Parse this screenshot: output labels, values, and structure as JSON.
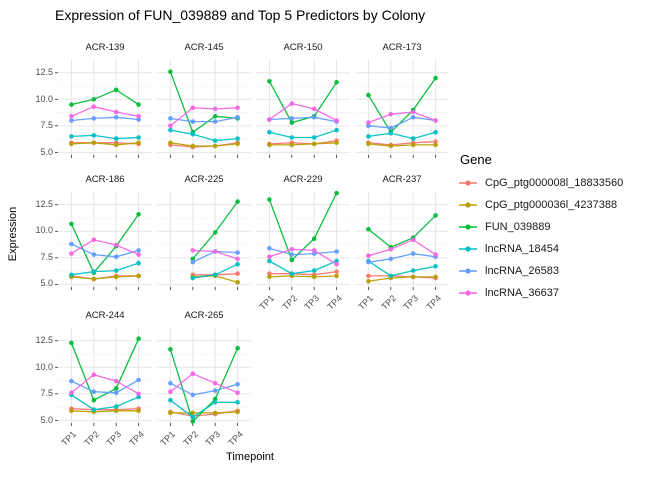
{
  "title": "Expression of FUN_039889 and Top 5 Predictors by Colony",
  "axes": {
    "x_title": "Timepoint",
    "y_title": "Expression",
    "x_tick_labels": [
      "TP1",
      "TP2",
      "TP3",
      "TP4"
    ],
    "y_tick_labels": [
      "5.0",
      "7.5",
      "10.0",
      "12.5"
    ]
  },
  "legend": {
    "title": "Gene",
    "entries": [
      {
        "label": "CpG_ptg000008l_18833560",
        "color": "#F8766D"
      },
      {
        "label": "CpG_ptg000036l_4237388",
        "color": "#B79F00"
      },
      {
        "label": "FUN_039889",
        "color": "#00BA38"
      },
      {
        "label": "lncRNA_18454",
        "color": "#00BFC4"
      },
      {
        "label": "lncRNA_26583",
        "color": "#619CFF"
      },
      {
        "label": "lncRNA_36637",
        "color": "#F564E3"
      }
    ]
  },
  "chart_data": {
    "type": "line",
    "title": "Expression of FUN_039889 and Top 5 Predictors by Colony",
    "xlabel": "Timepoint",
    "ylabel": "Expression",
    "x": [
      "TP1",
      "TP2",
      "TP3",
      "TP4"
    ],
    "y_ticks": [
      5.0,
      7.5,
      10.0,
      12.5
    ],
    "y_minor_ticks": [
      6.25,
      8.75,
      11.25
    ],
    "ylim": [
      4.75,
      13.8
    ],
    "grid": true,
    "legend_position": "right",
    "facet_variable": "Colony",
    "facets": [
      {
        "name": "ACR-139",
        "series": [
          {
            "name": "CpG_ptg000008l_18833560",
            "values": [
              5.9,
              5.9,
              5.9,
              5.8
            ]
          },
          {
            "name": "CpG_ptg000036l_4237388",
            "values": [
              5.8,
              5.9,
              5.7,
              5.9
            ]
          },
          {
            "name": "FUN_039889",
            "values": [
              9.5,
              10.0,
              10.9,
              9.5
            ]
          },
          {
            "name": "lncRNA_18454",
            "values": [
              6.5,
              6.6,
              6.3,
              6.4
            ]
          },
          {
            "name": "lncRNA_26583",
            "values": [
              8.0,
              8.2,
              8.3,
              8.1
            ]
          },
          {
            "name": "lncRNA_36637",
            "values": [
              8.4,
              9.3,
              8.8,
              8.4
            ]
          }
        ]
      },
      {
        "name": "ACR-145",
        "series": [
          {
            "name": "CpG_ptg000008l_18833560",
            "values": [
              5.7,
              5.5,
              5.6,
              5.9
            ]
          },
          {
            "name": "CpG_ptg000036l_4237388",
            "values": [
              5.9,
              5.6,
              5.6,
              5.8
            ]
          },
          {
            "name": "FUN_039889",
            "values": [
              12.6,
              6.9,
              8.4,
              8.2
            ]
          },
          {
            "name": "lncRNA_18454",
            "values": [
              7.1,
              6.7,
              6.1,
              6.3
            ]
          },
          {
            "name": "lncRNA_26583",
            "values": [
              8.2,
              7.9,
              7.9,
              8.3
            ]
          },
          {
            "name": "lncRNA_36637",
            "values": [
              7.5,
              9.2,
              9.1,
              9.2
            ]
          }
        ]
      },
      {
        "name": "ACR-150",
        "series": [
          {
            "name": "CpG_ptg000008l_18833560",
            "values": [
              5.8,
              5.9,
              5.8,
              6.1
            ]
          },
          {
            "name": "CpG_ptg000036l_4237388",
            "values": [
              5.7,
              5.7,
              5.8,
              5.9
            ]
          },
          {
            "name": "FUN_039889",
            "values": [
              11.7,
              7.8,
              8.4,
              11.6
            ]
          },
          {
            "name": "lncRNA_18454",
            "values": [
              6.9,
              6.4,
              6.4,
              7.1
            ]
          },
          {
            "name": "lncRNA_26583",
            "values": [
              8.1,
              8.2,
              8.3,
              7.9
            ]
          },
          {
            "name": "lncRNA_36637",
            "values": [
              8.1,
              9.6,
              9.1,
              8.0
            ]
          }
        ]
      },
      {
        "name": "ACR-173",
        "series": [
          {
            "name": "CpG_ptg000008l_18833560",
            "values": [
              5.9,
              5.7,
              5.9,
              6.0
            ]
          },
          {
            "name": "CpG_ptg000036l_4237388",
            "values": [
              5.8,
              5.6,
              5.7,
              5.7
            ]
          },
          {
            "name": "FUN_039889",
            "values": [
              10.4,
              6.9,
              9.0,
              12.0
            ]
          },
          {
            "name": "lncRNA_18454",
            "values": [
              6.5,
              6.8,
              6.3,
              6.9
            ]
          },
          {
            "name": "lncRNA_26583",
            "values": [
              7.5,
              7.3,
              8.3,
              8.0
            ]
          },
          {
            "name": "lncRNA_36637",
            "values": [
              7.8,
              8.6,
              8.8,
              8.0
            ]
          }
        ]
      },
      {
        "name": "ACR-186",
        "series": [
          {
            "name": "CpG_ptg000008l_18833560",
            "values": [
              5.8,
              5.5,
              5.8,
              5.8
            ]
          },
          {
            "name": "CpG_ptg000036l_4237388",
            "values": [
              5.7,
              5.5,
              5.7,
              5.8
            ]
          },
          {
            "name": "FUN_039889",
            "values": [
              10.7,
              6.1,
              8.6,
              11.6
            ]
          },
          {
            "name": "lncRNA_18454",
            "values": [
              5.9,
              6.2,
              6.3,
              7.0
            ]
          },
          {
            "name": "lncRNA_26583",
            "values": [
              8.8,
              7.8,
              7.6,
              8.2
            ]
          },
          {
            "name": "lncRNA_36637",
            "values": [
              7.9,
              9.2,
              8.7,
              7.8
            ]
          }
        ]
      },
      {
        "name": "ACR-225",
        "series": [
          {
            "name": "CpG_ptg000008l_18833560",
            "values": [
              null,
              5.9,
              5.9,
              6.0
            ]
          },
          {
            "name": "CpG_ptg000036l_4237388",
            "values": [
              null,
              5.7,
              5.8,
              5.2
            ]
          },
          {
            "name": "FUN_039889",
            "values": [
              null,
              7.4,
              9.9,
              12.8
            ]
          },
          {
            "name": "lncRNA_18454",
            "values": [
              null,
              5.6,
              5.9,
              6.9
            ]
          },
          {
            "name": "lncRNA_26583",
            "values": [
              null,
              7.1,
              8.1,
              8.0
            ]
          },
          {
            "name": "lncRNA_36637",
            "values": [
              null,
              8.2,
              8.1,
              7.4
            ]
          }
        ]
      },
      {
        "name": "ACR-229",
        "series": [
          {
            "name": "CpG_ptg000008l_18833560",
            "values": [
              6.0,
              6.0,
              5.9,
              6.2
            ]
          },
          {
            "name": "CpG_ptg000036l_4237388",
            "values": [
              5.7,
              5.8,
              5.7,
              5.8
            ]
          },
          {
            "name": "FUN_039889",
            "values": [
              13.0,
              7.3,
              9.3,
              13.6
            ]
          },
          {
            "name": "lncRNA_18454",
            "values": [
              7.2,
              6.0,
              6.3,
              7.2
            ]
          },
          {
            "name": "lncRNA_26583",
            "values": [
              8.4,
              7.8,
              7.9,
              8.1
            ]
          },
          {
            "name": "lncRNA_36637",
            "values": [
              7.6,
              8.3,
              8.2,
              6.9
            ]
          }
        ]
      },
      {
        "name": "ACR-237",
        "series": [
          {
            "name": "CpG_ptg000008l_18833560",
            "values": [
              5.8,
              5.8,
              5.7,
              5.6
            ]
          },
          {
            "name": "CpG_ptg000036l_4237388",
            "values": [
              5.3,
              5.6,
              5.7,
              5.7
            ]
          },
          {
            "name": "FUN_039889",
            "values": [
              10.2,
              8.5,
              9.4,
              11.5
            ]
          },
          {
            "name": "lncRNA_18454",
            "values": [
              7.2,
              5.8,
              6.3,
              6.7
            ]
          },
          {
            "name": "lncRNA_26583",
            "values": [
              7.1,
              7.4,
              7.9,
              7.6
            ]
          },
          {
            "name": "lncRNA_36637",
            "values": [
              7.7,
              8.3,
              9.2,
              7.8
            ]
          }
        ]
      },
      {
        "name": "ACR-244",
        "series": [
          {
            "name": "CpG_ptg000008l_18833560",
            "values": [
              6.1,
              6.0,
              6.0,
              6.1
            ]
          },
          {
            "name": "CpG_ptg000036l_4237388",
            "values": [
              5.9,
              5.8,
              5.9,
              5.9
            ]
          },
          {
            "name": "FUN_039889",
            "values": [
              12.3,
              6.9,
              8.0,
              12.7
            ]
          },
          {
            "name": "lncRNA_18454",
            "values": [
              7.4,
              6.0,
              6.3,
              7.2
            ]
          },
          {
            "name": "lncRNA_26583",
            "values": [
              8.7,
              7.7,
              7.6,
              8.8
            ]
          },
          {
            "name": "lncRNA_36637",
            "values": [
              7.6,
              9.3,
              8.7,
              7.5
            ]
          }
        ]
      },
      {
        "name": "ACR-265",
        "series": [
          {
            "name": "CpG_ptg000008l_18833560",
            "values": [
              5.8,
              5.4,
              5.6,
              5.9
            ]
          },
          {
            "name": "CpG_ptg000036l_4237388",
            "values": [
              5.7,
              5.7,
              5.7,
              5.8
            ]
          },
          {
            "name": "FUN_039889",
            "values": [
              11.7,
              4.9,
              7.0,
              11.8
            ]
          },
          {
            "name": "lncRNA_18454",
            "values": [
              6.9,
              5.3,
              6.7,
              6.7
            ]
          },
          {
            "name": "lncRNA_26583",
            "values": [
              8.5,
              7.4,
              7.8,
              8.4
            ]
          },
          {
            "name": "lncRNA_36637",
            "values": [
              7.7,
              9.4,
              8.5,
              7.6
            ]
          }
        ]
      }
    ]
  },
  "style": {
    "grid_major_color": "#E6E6E6",
    "grid_minor_color": "#F2F2F2",
    "axis_text_color": "#4d4d4d",
    "tick_color": "#333333"
  }
}
